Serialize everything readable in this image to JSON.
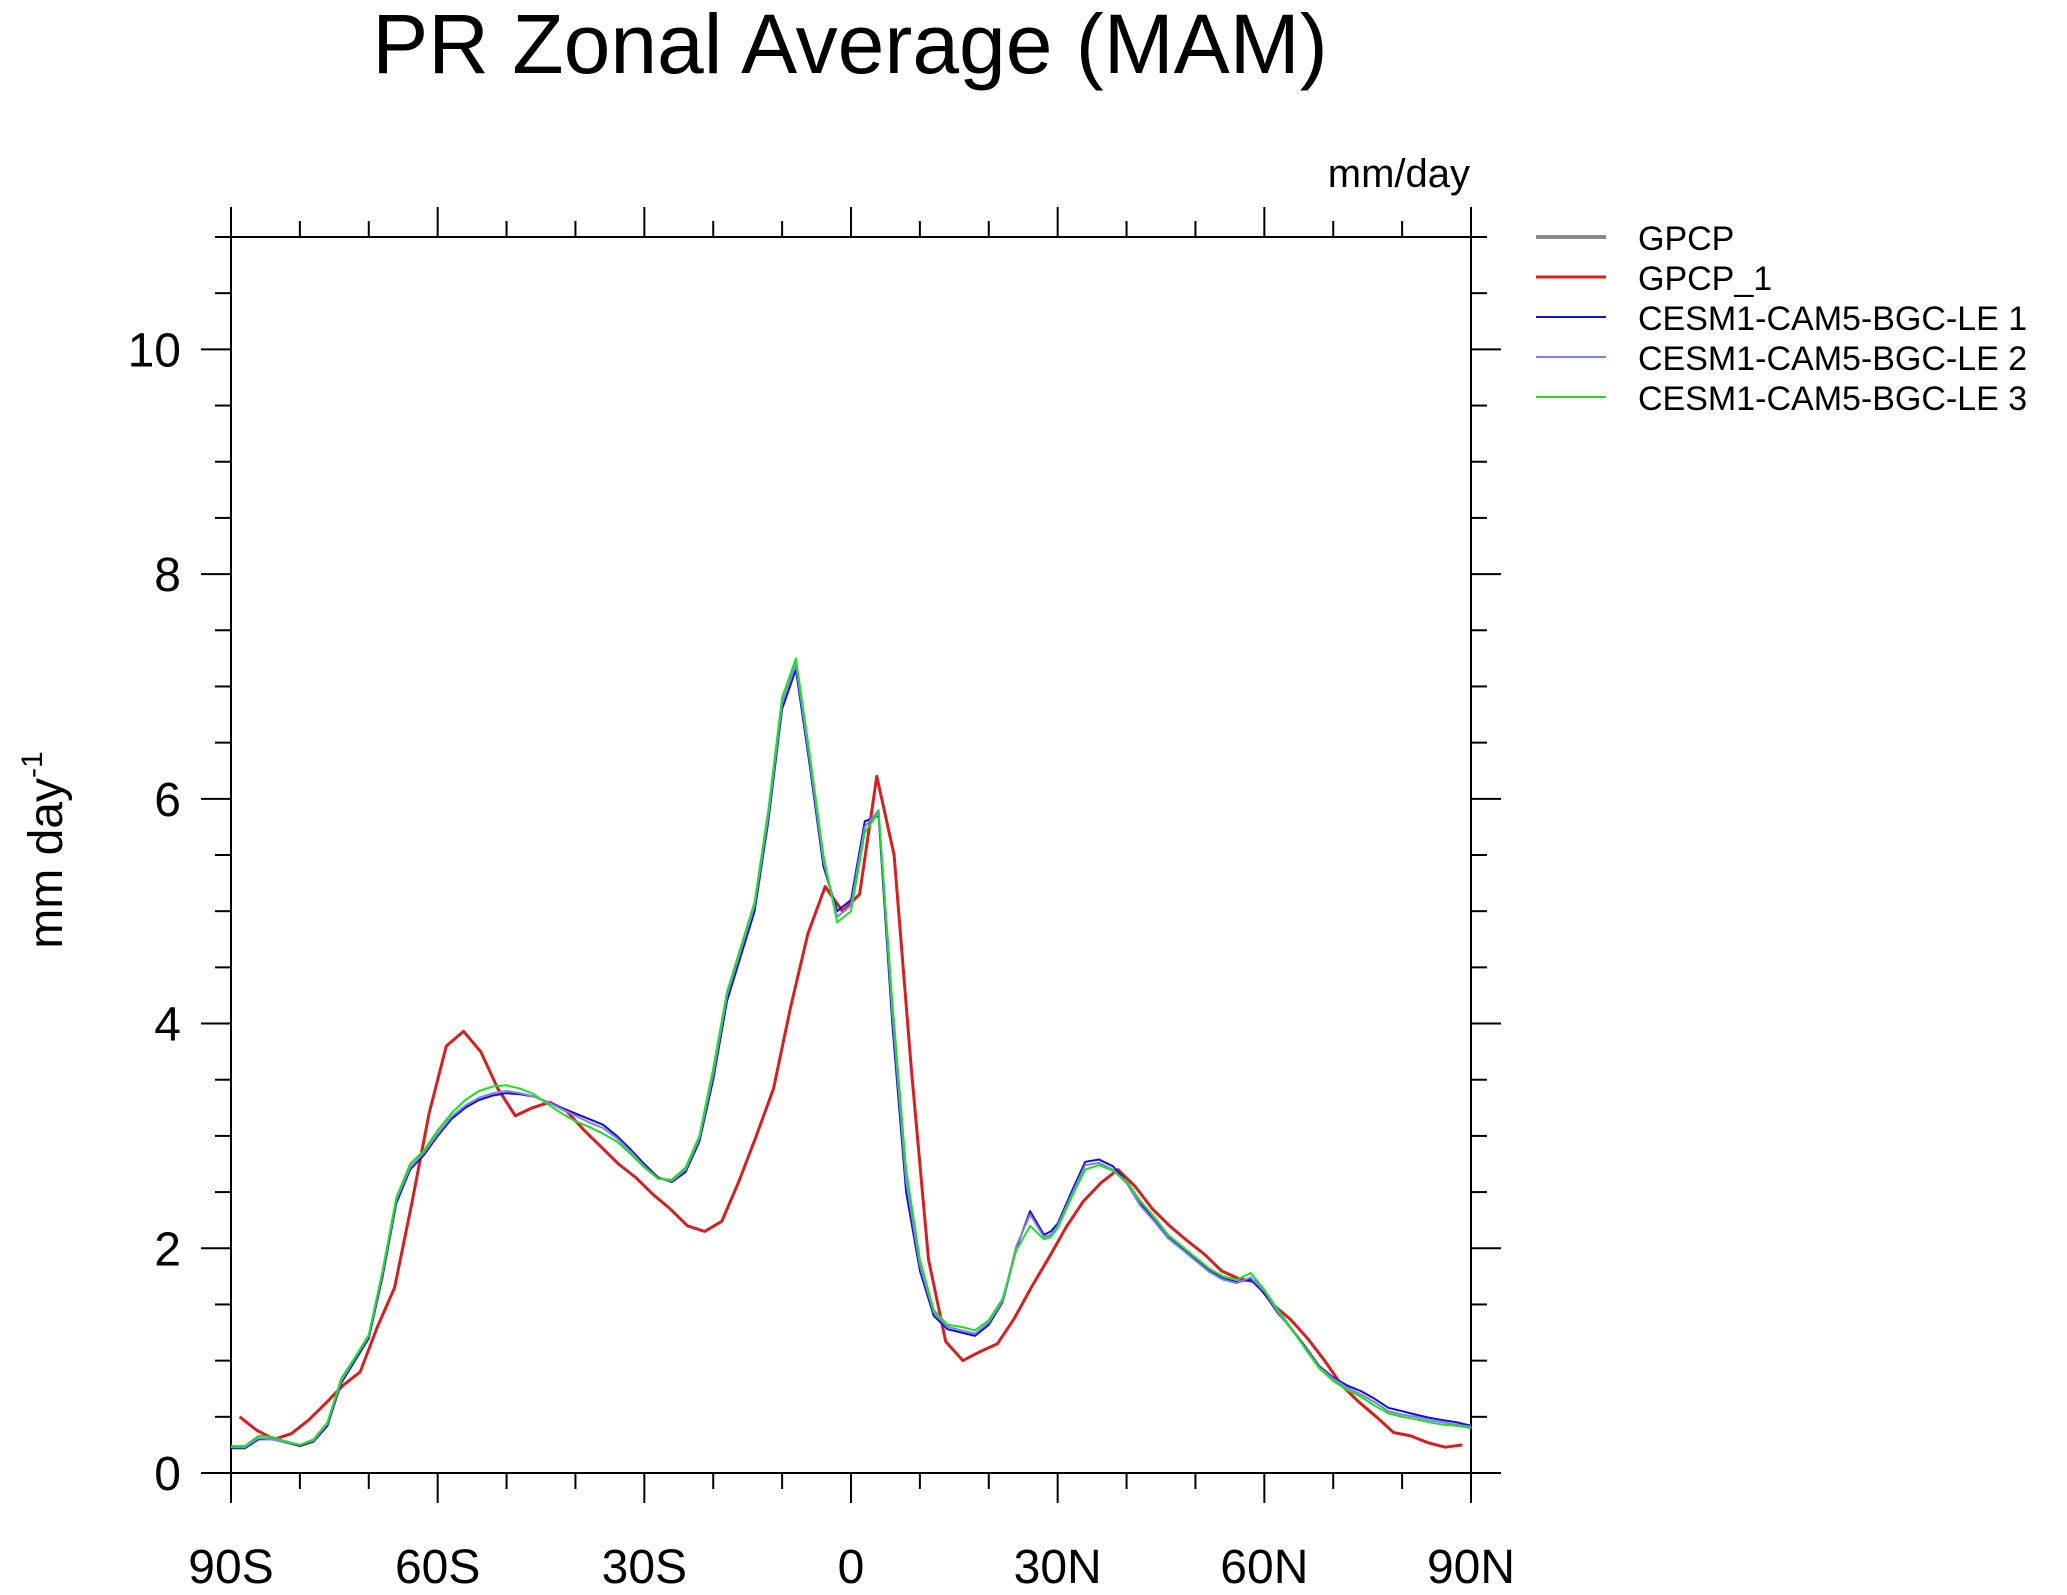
{
  "chart_data": {
    "type": "line",
    "title": "PR Zonal Average (MAM)",
    "units_label": "mm/day",
    "ylabel": "mm day",
    "ylabel_superscript": "-1",
    "xlabel": "",
    "xlim": [
      -90,
      90
    ],
    "ylim": [
      0,
      11
    ],
    "xticks": [
      {
        "value": -90,
        "label": "90S"
      },
      {
        "value": -60,
        "label": "60S"
      },
      {
        "value": -30,
        "label": "30S"
      },
      {
        "value": 0,
        "label": "0"
      },
      {
        "value": 30,
        "label": "30N"
      },
      {
        "value": 60,
        "label": "60N"
      },
      {
        "value": 90,
        "label": "90N"
      }
    ],
    "yticks": [
      {
        "value": 0,
        "label": "0"
      },
      {
        "value": 2,
        "label": "2"
      },
      {
        "value": 4,
        "label": "4"
      },
      {
        "value": 6,
        "label": "6"
      },
      {
        "value": 8,
        "label": "8"
      },
      {
        "value": 10,
        "label": "10"
      }
    ],
    "grid": false,
    "legend_position": "right",
    "series": [
      {
        "name": "GPCP",
        "color": "#888888",
        "width": 4,
        "x": [],
        "y": []
      },
      {
        "name": "GPCP_1",
        "color": "#d42020",
        "width": 3,
        "x": [
          -88.75,
          -86.25,
          -83.75,
          -81.25,
          -78.75,
          -76.25,
          -73.75,
          -71.25,
          -68.75,
          -66.25,
          -63.75,
          -61.25,
          -58.75,
          -56.25,
          -53.75,
          -51.25,
          -48.75,
          -46.25,
          -43.75,
          -41.25,
          -38.75,
          -36.25,
          -33.75,
          -31.25,
          -28.75,
          -26.25,
          -23.75,
          -21.25,
          -18.75,
          -16.25,
          -13.75,
          -11.25,
          -8.75,
          -6.25,
          -3.75,
          -1.25,
          1.25,
          3.75,
          6.25,
          8.75,
          11.25,
          13.75,
          16.25,
          18.75,
          21.25,
          23.75,
          26.25,
          28.75,
          31.25,
          33.75,
          36.25,
          38.75,
          41.25,
          43.75,
          46.25,
          48.75,
          51.25,
          53.75,
          56.25,
          58.75,
          61.25,
          63.75,
          66.25,
          68.75,
          71.25,
          73.75,
          76.25,
          78.75,
          81.25,
          83.75,
          86.25,
          88.75
        ],
        "y": [
          0.5,
          0.38,
          0.3,
          0.35,
          0.47,
          0.62,
          0.78,
          0.9,
          1.3,
          1.65,
          2.4,
          3.2,
          3.8,
          3.93,
          3.75,
          3.42,
          3.18,
          3.25,
          3.3,
          3.22,
          3.05,
          2.9,
          2.75,
          2.63,
          2.48,
          2.35,
          2.2,
          2.15,
          2.24,
          2.6,
          3.0,
          3.42,
          4.15,
          4.8,
          5.22,
          5.0,
          5.15,
          6.2,
          5.5,
          3.6,
          1.9,
          1.17,
          1.0,
          1.08,
          1.15,
          1.38,
          1.66,
          1.92,
          2.19,
          2.42,
          2.58,
          2.7,
          2.55,
          2.35,
          2.2,
          2.07,
          1.95,
          1.8,
          1.73,
          1.7,
          1.5,
          1.37,
          1.2,
          1.0,
          0.78,
          0.63,
          0.5,
          0.36,
          0.33,
          0.27,
          0.23,
          0.25
        ]
      },
      {
        "name": "CESM1-CAM5-BGC-LE 1",
        "color": "#1010d0",
        "width": 2,
        "x": [
          -90,
          -88,
          -86,
          -84,
          -82,
          -80,
          -78,
          -76,
          -74,
          -72,
          -70,
          -68,
          -66,
          -64,
          -62,
          -60,
          -58,
          -56,
          -54,
          -52,
          -50,
          -48,
          -46,
          -44,
          -42,
          -40,
          -38,
          -36,
          -34,
          -32,
          -30,
          -28,
          -26,
          -24,
          -22,
          -20,
          -18,
          -16,
          -14,
          -12,
          -10,
          -8,
          -6,
          -4,
          -2,
          0,
          2,
          4,
          6,
          8,
          10,
          12,
          14,
          16,
          18,
          20,
          22,
          24,
          26,
          28,
          29,
          30,
          32,
          34,
          36,
          38,
          40,
          42,
          44,
          46,
          48,
          50,
          52,
          54,
          56,
          58,
          60,
          62,
          64,
          66,
          68,
          70,
          72,
          74,
          76,
          78,
          80,
          82,
          84,
          86,
          88,
          90
        ],
        "y": [
          0.22,
          0.22,
          0.3,
          0.3,
          0.27,
          0.24,
          0.28,
          0.42,
          0.8,
          1.0,
          1.2,
          1.75,
          2.4,
          2.7,
          2.83,
          3.0,
          3.15,
          3.25,
          3.32,
          3.36,
          3.38,
          3.37,
          3.35,
          3.3,
          3.25,
          3.2,
          3.15,
          3.1,
          3.0,
          2.88,
          2.75,
          2.63,
          2.59,
          2.68,
          2.95,
          3.5,
          4.2,
          4.6,
          5.0,
          5.8,
          6.8,
          7.15,
          6.3,
          5.4,
          5.0,
          5.1,
          5.8,
          5.85,
          4.0,
          2.5,
          1.8,
          1.4,
          1.28,
          1.25,
          1.22,
          1.32,
          1.52,
          2.0,
          2.33,
          2.12,
          2.15,
          2.22,
          2.5,
          2.77,
          2.79,
          2.73,
          2.6,
          2.4,
          2.25,
          2.1,
          2.0,
          1.9,
          1.8,
          1.73,
          1.7,
          1.72,
          1.6,
          1.42,
          1.28,
          1.12,
          0.95,
          0.85,
          0.78,
          0.73,
          0.66,
          0.58,
          0.55,
          0.52,
          0.49,
          0.47,
          0.45,
          0.42
        ]
      },
      {
        "name": "CESM1-CAM5-BGC-LE 2",
        "color": "#8080ee",
        "width": 2,
        "x": [
          -90,
          -88,
          -86,
          -84,
          -82,
          -80,
          -78,
          -76,
          -74,
          -72,
          -70,
          -68,
          -66,
          -64,
          -62,
          -60,
          -58,
          -56,
          -54,
          -52,
          -50,
          -48,
          -46,
          -44,
          -42,
          -40,
          -38,
          -36,
          -34,
          -32,
          -30,
          -28,
          -26,
          -24,
          -22,
          -20,
          -18,
          -16,
          -14,
          -12,
          -10,
          -8,
          -6,
          -4,
          -2,
          0,
          2,
          4,
          6,
          8,
          10,
          12,
          14,
          16,
          18,
          20,
          22,
          24,
          26,
          28,
          29,
          30,
          32,
          34,
          36,
          38,
          40,
          42,
          44,
          46,
          48,
          50,
          52,
          54,
          56,
          58,
          60,
          62,
          64,
          66,
          68,
          70,
          72,
          74,
          76,
          78,
          80,
          82,
          84,
          86,
          88,
          90
        ],
        "y": [
          0.23,
          0.23,
          0.31,
          0.3,
          0.27,
          0.25,
          0.29,
          0.44,
          0.82,
          1.02,
          1.22,
          1.78,
          2.43,
          2.72,
          2.85,
          3.02,
          3.17,
          3.27,
          3.34,
          3.38,
          3.4,
          3.38,
          3.35,
          3.3,
          3.24,
          3.18,
          3.12,
          3.07,
          2.98,
          2.86,
          2.73,
          2.62,
          2.6,
          2.7,
          2.98,
          3.55,
          4.25,
          4.65,
          5.05,
          5.85,
          6.85,
          7.2,
          6.35,
          5.45,
          4.95,
          5.05,
          5.75,
          5.9,
          4.1,
          2.6,
          1.85,
          1.43,
          1.3,
          1.27,
          1.24,
          1.34,
          1.53,
          2.02,
          2.3,
          2.1,
          2.12,
          2.2,
          2.47,
          2.74,
          2.76,
          2.7,
          2.58,
          2.38,
          2.24,
          2.09,
          1.99,
          1.89,
          1.79,
          1.72,
          1.69,
          1.74,
          1.62,
          1.43,
          1.27,
          1.11,
          0.94,
          0.84,
          0.76,
          0.7,
          0.63,
          0.55,
          0.52,
          0.5,
          0.47,
          0.45,
          0.43,
          0.41
        ]
      },
      {
        "name": "CESM1-CAM5-BGC-LE 3",
        "color": "#22dd22",
        "width": 2,
        "x": [
          -90,
          -88,
          -86,
          -84,
          -82,
          -80,
          -78,
          -76,
          -74,
          -72,
          -70,
          -68,
          -66,
          -64,
          -62,
          -60,
          -58,
          -56,
          -54,
          -52,
          -50,
          -48,
          -46,
          -44,
          -42,
          -40,
          -38,
          -36,
          -34,
          -32,
          -30,
          -28,
          -26,
          -24,
          -22,
          -20,
          -18,
          -16,
          -14,
          -12,
          -10,
          -8,
          -6,
          -4,
          -2,
          0,
          2,
          4,
          6,
          8,
          10,
          12,
          14,
          16,
          18,
          20,
          22,
          24,
          26,
          28,
          29,
          30,
          32,
          34,
          36,
          38,
          40,
          42,
          44,
          46,
          48,
          50,
          52,
          54,
          56,
          58,
          60,
          62,
          64,
          66,
          68,
          70,
          72,
          74,
          76,
          78,
          80,
          82,
          84,
          86,
          88,
          90
        ],
        "y": [
          0.24,
          0.24,
          0.33,
          0.32,
          0.28,
          0.25,
          0.3,
          0.45,
          0.84,
          1.03,
          1.23,
          1.8,
          2.45,
          2.75,
          2.87,
          3.05,
          3.2,
          3.32,
          3.4,
          3.44,
          3.45,
          3.42,
          3.37,
          3.28,
          3.2,
          3.13,
          3.08,
          3.02,
          2.95,
          2.84,
          2.72,
          2.62,
          2.61,
          2.72,
          3.0,
          3.6,
          4.28,
          4.68,
          5.08,
          5.9,
          6.9,
          7.25,
          6.4,
          5.5,
          4.9,
          5.0,
          5.7,
          5.88,
          4.2,
          2.7,
          1.9,
          1.45,
          1.32,
          1.3,
          1.27,
          1.36,
          1.55,
          1.98,
          2.2,
          2.08,
          2.1,
          2.18,
          2.45,
          2.7,
          2.74,
          2.69,
          2.6,
          2.42,
          2.28,
          2.12,
          2.02,
          1.92,
          1.82,
          1.75,
          1.72,
          1.78,
          1.63,
          1.45,
          1.28,
          1.1,
          0.93,
          0.82,
          0.74,
          0.68,
          0.6,
          0.53,
          0.5,
          0.48,
          0.45,
          0.43,
          0.42,
          0.4
        ]
      }
    ]
  }
}
